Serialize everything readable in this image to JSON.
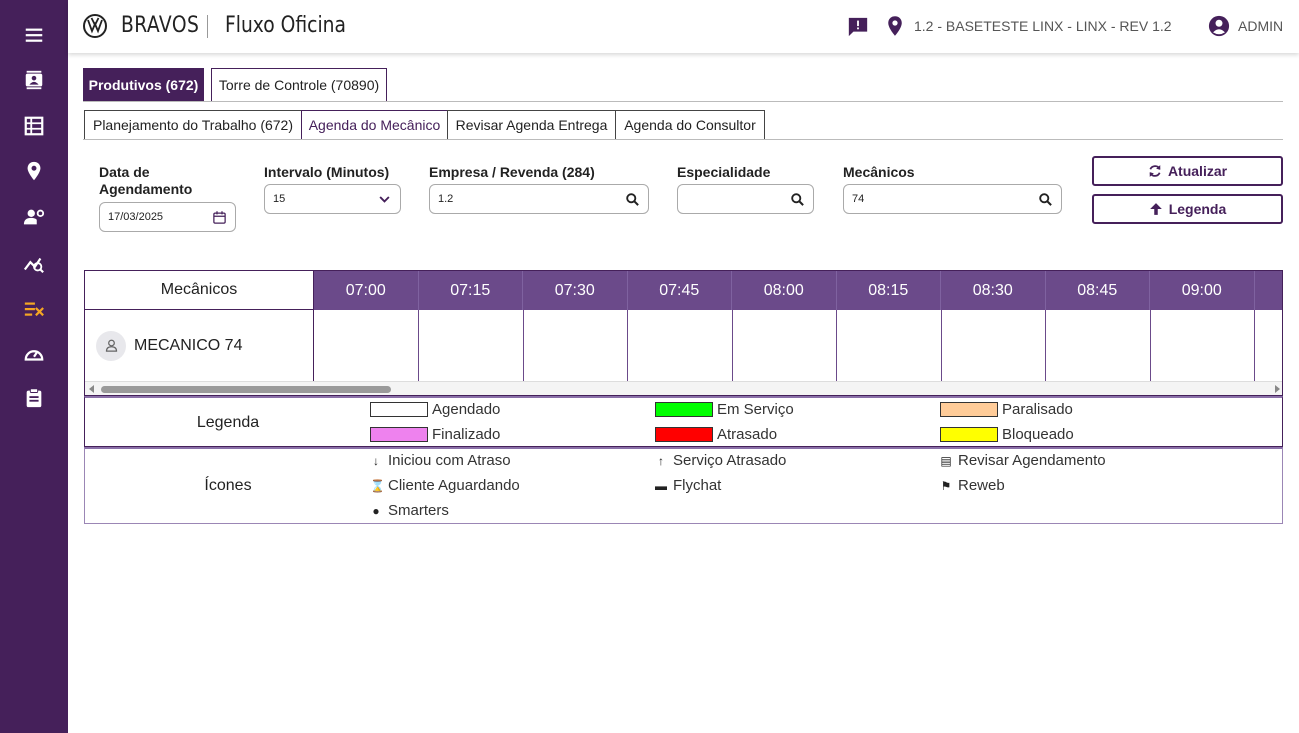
{
  "header": {
    "brand": "BRAVOS",
    "app_title": "Fluxo Oficina",
    "location": "1.2 - BASETESTE LINX - LINX - REV 1.2",
    "user": "ADMIN"
  },
  "sidebar": {
    "items": [
      "menu-icon",
      "contacts-icon",
      "table-icon",
      "location-icon",
      "user-gear-icon",
      "analytics-icon",
      "checklist-icon",
      "speedometer-icon",
      "clipboard-icon"
    ]
  },
  "tabs_main": [
    {
      "label": "Produtivos (672)",
      "active": true
    },
    {
      "label": "Torre de Controle (70890)",
      "active": false
    }
  ],
  "tabs_sub": [
    {
      "label": "Planejamento do Trabalho (672)",
      "active": false
    },
    {
      "label": "Agenda do Mecânico",
      "active": true
    },
    {
      "label": "Revisar Agenda Entrega",
      "active": false
    },
    {
      "label": "Agenda do Consultor",
      "active": false
    }
  ],
  "filters": {
    "data_label": "Data de Agendamento",
    "data_value": "17/03/2025",
    "intervalo_label": "Intervalo (Minutos)",
    "intervalo_value": "15",
    "empresa_label": "Empresa / Revenda (284)",
    "empresa_value": "1.2",
    "especialidade_label": "Especialidade",
    "especialidade_value": "",
    "mecanicos_label": "Mecânicos",
    "mecanicos_value": "74"
  },
  "buttons": {
    "atualizar": "Atualizar",
    "legenda": "Legenda"
  },
  "schedule": {
    "mec_header": "Mecânicos",
    "slots": [
      "07:00",
      "07:15",
      "07:30",
      "07:45",
      "08:00",
      "08:15",
      "08:30",
      "08:45",
      "09:00"
    ],
    "rows": [
      {
        "name": "MECANICO 74"
      }
    ]
  },
  "legend": {
    "label": "Legenda",
    "items": [
      {
        "label": "Agendado",
        "color": "#ffffff"
      },
      {
        "label": "Em Serviço",
        "color": "#00ff00"
      },
      {
        "label": "Paralisado",
        "color": "#ffcc99"
      },
      {
        "label": "Finalizado",
        "color": "#ee82ee"
      },
      {
        "label": "Atrasado",
        "color": "#ff0000"
      },
      {
        "label": "Bloqueado",
        "color": "#ffff00"
      }
    ]
  },
  "icons_legend": {
    "label": "Ícones",
    "items": [
      {
        "glyph": "↓",
        "label": "Iniciou com Atraso",
        "icon": "arrow-down-icon"
      },
      {
        "glyph": "↑",
        "label": "Serviço Atrasado",
        "icon": "arrow-up-icon"
      },
      {
        "glyph": "▤",
        "label": "Revisar Agendamento",
        "icon": "calendar-icon"
      },
      {
        "glyph": "⌛",
        "label": "Cliente Aguardando",
        "icon": "hourglass-icon"
      },
      {
        "glyph": "▬",
        "label": "Flychat",
        "icon": "chat-icon"
      },
      {
        "glyph": "⚑",
        "label": "Reweb",
        "icon": "flag-icon"
      },
      {
        "glyph": "●",
        "label": "Smarters",
        "icon": "pin-icon"
      }
    ]
  },
  "colors": {
    "primary": "#45205a",
    "header_slots": "#6b4a8a"
  }
}
